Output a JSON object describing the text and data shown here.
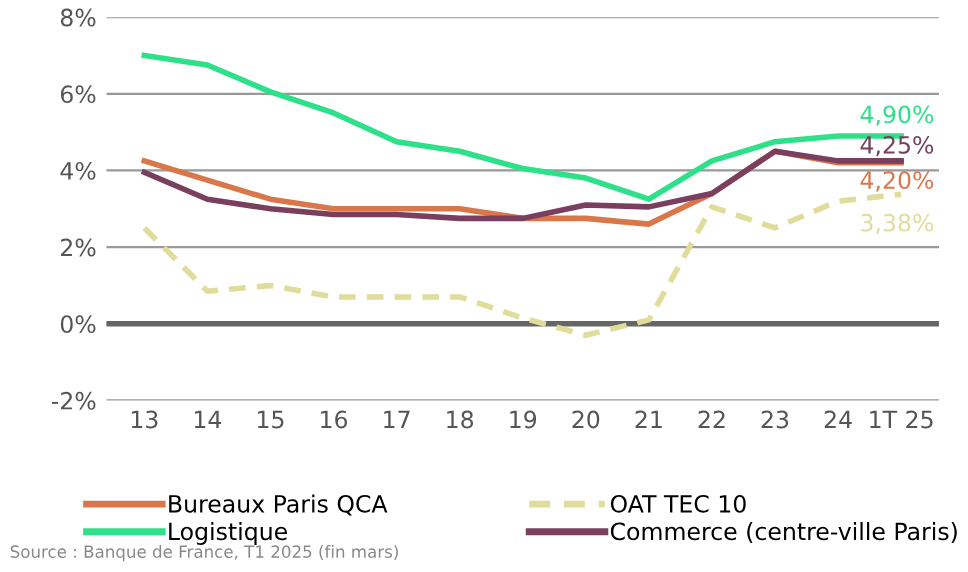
{
  "chart_data": {
    "type": "line",
    "categories": [
      "13",
      "14",
      "15",
      "16",
      "17",
      "18",
      "19",
      "20",
      "21",
      "22",
      "23",
      "24",
      "1T 25"
    ],
    "series": [
      {
        "name": "Bureaux Paris QCA",
        "color": "#d9774b",
        "values": [
          4.25,
          3.75,
          3.25,
          3.0,
          3.0,
          3.0,
          2.75,
          2.75,
          2.6,
          3.4,
          4.5,
          4.2,
          4.2
        ],
        "value_labels": [
          null,
          null,
          null,
          null,
          null,
          null,
          null,
          null,
          null,
          null,
          null,
          null,
          "4,20%"
        ]
      },
      {
        "name": "Logistique",
        "color": "#2ee089",
        "values": [
          7.0,
          6.75,
          6.05,
          5.5,
          4.75,
          4.5,
          4.05,
          3.8,
          3.25,
          4.25,
          4.75,
          4.9,
          4.9
        ],
        "value_labels": [
          null,
          null,
          null,
          null,
          null,
          null,
          null,
          null,
          null,
          null,
          null,
          null,
          "4,90%"
        ]
      },
      {
        "name": "OAT TEC 10",
        "color": "#e0dc9c",
        "line_style": "dashed",
        "values": [
          2.5,
          0.85,
          1.0,
          0.7,
          0.7,
          0.7,
          0.15,
          -0.3,
          0.1,
          3.05,
          2.5,
          3.2,
          3.38
        ],
        "value_labels": [
          null,
          null,
          null,
          null,
          null,
          null,
          null,
          null,
          null,
          null,
          null,
          null,
          "3,38%"
        ]
      },
      {
        "name": "Commerce (centre-ville Paris)",
        "color": "#7a3e5e",
        "values": [
          3.95,
          3.25,
          3.0,
          2.85,
          2.85,
          2.75,
          2.75,
          3.1,
          3.05,
          3.4,
          4.5,
          4.25,
          4.25
        ],
        "value_labels": [
          null,
          null,
          null,
          null,
          null,
          null,
          null,
          null,
          null,
          null,
          null,
          null,
          "4,25%"
        ]
      }
    ],
    "ylim": [
      -2,
      8
    ],
    "yticks": [
      {
        "value": -2,
        "label": "-2%"
      },
      {
        "value": 0,
        "label": "0%"
      },
      {
        "value": 2,
        "label": "2%"
      },
      {
        "value": 4,
        "label": "4%"
      },
      {
        "value": 6,
        "label": "6%"
      },
      {
        "value": 8,
        "label": "8%"
      }
    ],
    "grid": "y",
    "ref_lines": [
      {
        "axis": "y",
        "value": 0,
        "color": "#666666"
      }
    ],
    "legend": "bottom",
    "marker": "none",
    "line_style": "solid",
    "annotations": [
      "Source : Banque de France, T1 2025 (fin mars)"
    ]
  }
}
